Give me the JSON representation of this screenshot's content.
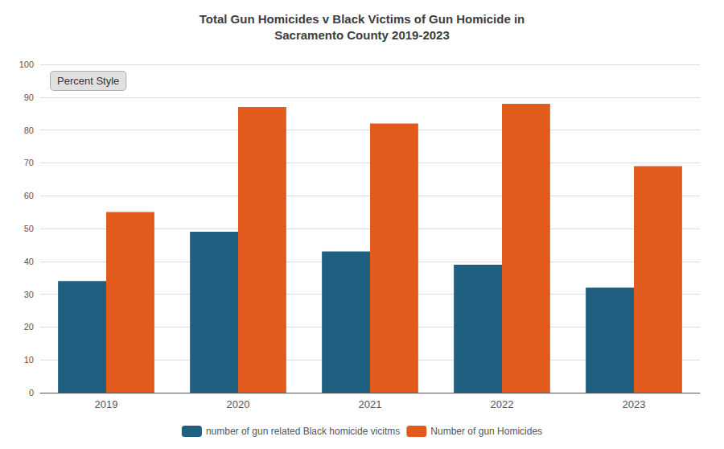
{
  "chart_data": {
    "type": "bar",
    "title": "Total Gun Homicides v Black Victims of Gun Homicide in\nSacramento County 2019-2023",
    "categories": [
      "2019",
      "2020",
      "2021",
      "2022",
      "2023"
    ],
    "series": [
      {
        "name": "number of gun related Black homicide vicitms",
        "color": "#1f6080",
        "values": [
          34,
          49,
          43,
          39,
          32
        ]
      },
      {
        "name": "Number of gun Homicides",
        "color": "#e25a1c",
        "values": [
          55,
          87,
          82,
          88,
          69
        ]
      }
    ],
    "ylim": [
      0,
      100
    ],
    "yticks": [
      0,
      10,
      20,
      30,
      40,
      50,
      60,
      70,
      80,
      90,
      100
    ],
    "grid": true,
    "legend": "bottom",
    "annotations": [
      {
        "text": "Percent Style"
      }
    ]
  }
}
